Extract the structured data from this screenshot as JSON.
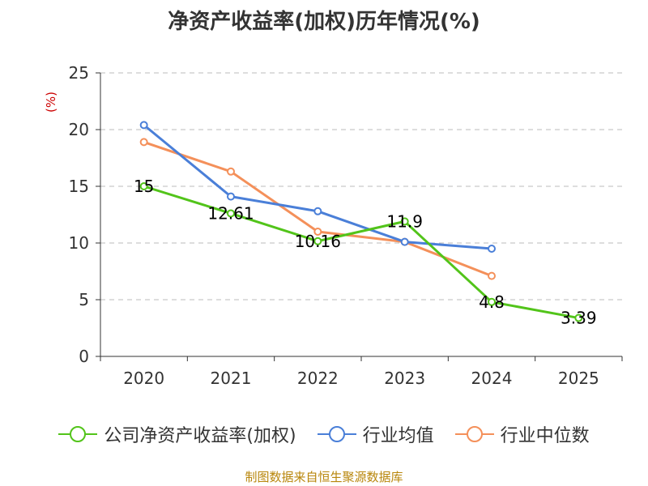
{
  "chart_data": {
    "type": "line",
    "title": "净资产收益率(加权)历年情况(%)",
    "ylabel": "(%)",
    "xlabel": "",
    "categories": [
      "2020",
      "2021",
      "2022",
      "2023",
      "2024",
      "2025"
    ],
    "ylim": [
      0,
      25
    ],
    "yticks": [
      0,
      5,
      10,
      15,
      20,
      25
    ],
    "grid": true,
    "legend_position": "bottom",
    "series": [
      {
        "name": "公司净资产收益率(加权)",
        "color": "#52c41a",
        "values": [
          15,
          12.61,
          10.16,
          11.9,
          4.8,
          3.39
        ],
        "labels": [
          "15",
          "12.61",
          "10.16",
          "11.9",
          "4.8",
          "3.39"
        ]
      },
      {
        "name": "行业均值",
        "color": "#4a7fd8",
        "values": [
          20.4,
          14.1,
          12.8,
          10.1,
          9.5,
          null
        ]
      },
      {
        "name": "行业中位数",
        "color": "#f4905a",
        "values": [
          18.9,
          16.3,
          11.0,
          10.1,
          7.1,
          null
        ]
      }
    ]
  },
  "source": "制图数据来自恒生聚源数据库"
}
